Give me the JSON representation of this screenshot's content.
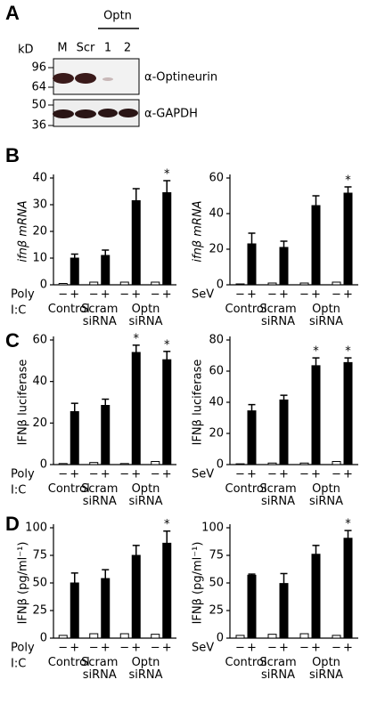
{
  "panels": [
    "A",
    "B",
    "C",
    "D"
  ],
  "blot": {
    "unit": "kD",
    "markers": [
      "96",
      "64",
      "50",
      "36"
    ],
    "lanes": [
      "M",
      "Scr",
      "1",
      "2"
    ],
    "group": "Optn",
    "antibodies": [
      "α-Optineurin",
      "α-GAPDH"
    ]
  },
  "chart_data": [
    {
      "type": "bar",
      "ylabel": "ifnβ mRNA",
      "xlabel": [
        "Poly",
        "I:C"
      ],
      "categories": [
        "Control",
        "Scram siRNA",
        "Optn siRNA",
        null
      ],
      "series": [
        {
          "name": "−",
          "color": "#ffffff",
          "values": [
            0.5,
            1,
            1,
            1
          ]
        },
        {
          "name": "+",
          "color": "#000000",
          "values": [
            10,
            11,
            31.5,
            34.5
          ],
          "errors": [
            1.5,
            2,
            4.5,
            4.5
          ]
        }
      ],
      "significance": [
        null,
        null,
        null,
        "*"
      ],
      "ylim": [
        0,
        40
      ],
      "yticks": [
        0,
        10,
        20,
        30,
        40
      ]
    },
    {
      "type": "bar",
      "ylabel": "ifnβ mRNA",
      "xlabel": [
        "SeV"
      ],
      "categories": [
        "Control",
        "Scram siRNA",
        "Optn siRNA",
        null
      ],
      "series": [
        {
          "name": "−",
          "color": "#ffffff",
          "values": [
            0.5,
            1,
            1,
            1.5
          ]
        },
        {
          "name": "+",
          "color": "#000000",
          "values": [
            23,
            21,
            44.5,
            51.5
          ],
          "errors": [
            6,
            3.5,
            5.5,
            3.5
          ]
        }
      ],
      "significance": [
        null,
        null,
        null,
        "*"
      ],
      "ylim": [
        0,
        60
      ],
      "yticks": [
        0,
        20,
        40,
        60
      ]
    },
    {
      "type": "bar",
      "ylabel": "IFNβ luciferase",
      "xlabel": [
        "Poly",
        "I:C"
      ],
      "categories": [
        "Control",
        "Scram siRNA",
        "Optn siRNA",
        null
      ],
      "series": [
        {
          "name": "−",
          "color": "#ffffff",
          "values": [
            0.5,
            1,
            0.5,
            1.5
          ]
        },
        {
          "name": "+",
          "color": "#000000",
          "values": [
            25.5,
            28.5,
            54,
            50.5
          ],
          "errors": [
            4,
            3,
            3.5,
            4
          ]
        }
      ],
      "significance": [
        null,
        null,
        "*",
        "*"
      ],
      "ylim": [
        0,
        60
      ],
      "yticks": [
        0,
        20,
        40,
        60
      ]
    },
    {
      "type": "bar",
      "ylabel": "IFNβ luciferase",
      "xlabel": [
        "SeV"
      ],
      "categories": [
        "Control",
        "Scram siRNA",
        "Optn siRNA",
        null
      ],
      "series": [
        {
          "name": "−",
          "color": "#ffffff",
          "values": [
            0.5,
            1,
            1,
            2
          ]
        },
        {
          "name": "+",
          "color": "#000000",
          "values": [
            34.5,
            41.5,
            63.5,
            65.5
          ],
          "errors": [
            4,
            3,
            5,
            3
          ]
        }
      ],
      "significance": [
        null,
        null,
        "*",
        "*"
      ],
      "ylim": [
        0,
        80
      ],
      "yticks": [
        0,
        20,
        40,
        60,
        80
      ]
    },
    {
      "type": "bar",
      "ylabel": "IFNβ (pg/ml⁻¹)",
      "xlabel": [
        "Poly",
        "I:C"
      ],
      "categories": [
        "Control",
        "Scram siRNA",
        "Optn siRNA",
        null
      ],
      "series": [
        {
          "name": "−",
          "color": "#ffffff",
          "values": [
            2.5,
            4,
            4,
            3.5
          ]
        },
        {
          "name": "+",
          "color": "#000000",
          "values": [
            50,
            54,
            75,
            86
          ],
          "errors": [
            9,
            8,
            9,
            11
          ]
        }
      ],
      "significance": [
        null,
        null,
        null,
        "*"
      ],
      "ylim": [
        0,
        100
      ],
      "yticks": [
        0,
        25,
        50,
        75,
        100
      ]
    },
    {
      "type": "bar",
      "ylabel": "IFNβ (pg/ml⁻¹)",
      "xlabel": [
        "SeV"
      ],
      "categories": [
        "Control",
        "Scram siRNA",
        "Optn siRNA",
        null
      ],
      "series": [
        {
          "name": "−",
          "color": "#ffffff",
          "values": [
            2.5,
            3.5,
            4,
            2.5
          ]
        },
        {
          "name": "+",
          "color": "#000000",
          "values": [
            57,
            49.5,
            76,
            90.5
          ],
          "errors": [
            1,
            9,
            8,
            7
          ]
        }
      ],
      "significance": [
        null,
        null,
        null,
        "*"
      ],
      "ylim": [
        0,
        100
      ],
      "yticks": [
        0,
        25,
        50,
        75,
        100
      ]
    }
  ]
}
